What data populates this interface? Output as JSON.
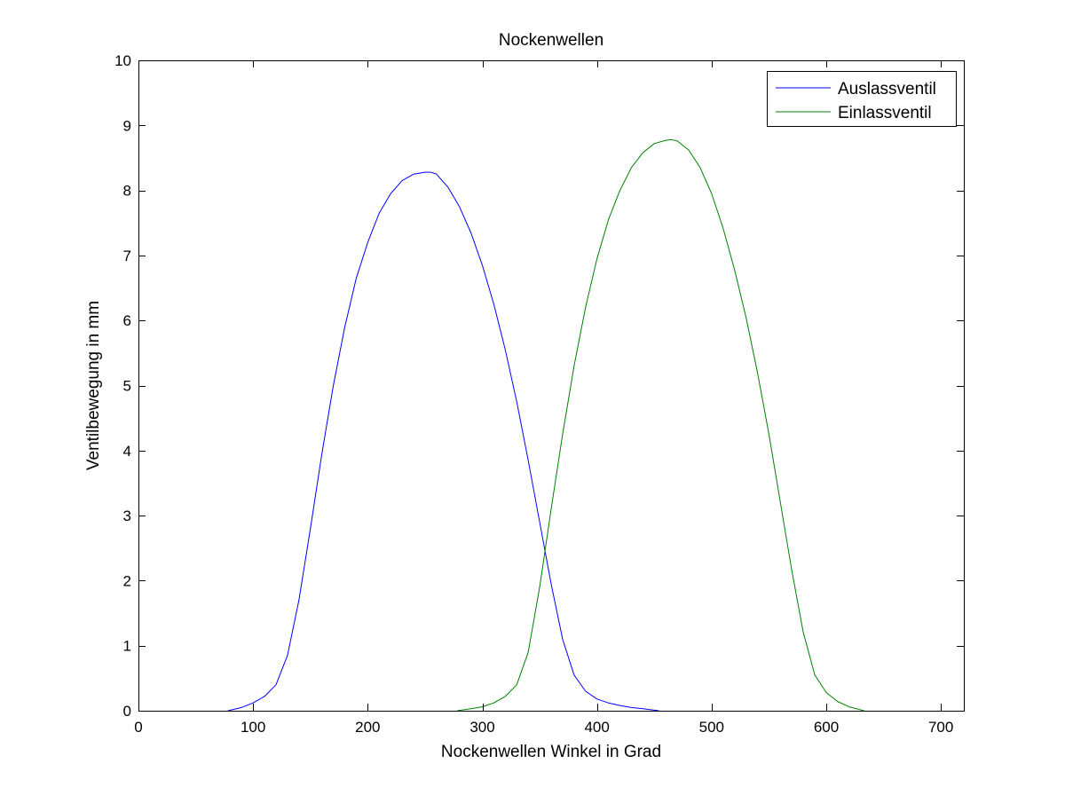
{
  "chart_data": {
    "type": "line",
    "title": "Nockenwellen",
    "xlabel": "Nockenwellen Winkel in Grad",
    "ylabel": "Ventilbewegung in mm",
    "xlim": [
      0,
      720
    ],
    "ylim": [
      0,
      10
    ],
    "xticks": [
      0,
      100,
      200,
      300,
      400,
      500,
      600,
      700
    ],
    "yticks": [
      0,
      1,
      2,
      3,
      4,
      5,
      6,
      7,
      8,
      9,
      10
    ],
    "xtick_labels": [
      "0",
      "100",
      "200",
      "300",
      "400",
      "500",
      "600",
      "700"
    ],
    "ytick_labels": [
      "0",
      "1",
      "2",
      "3",
      "4",
      "5",
      "6",
      "7",
      "8",
      "9",
      "10"
    ],
    "grid": false,
    "legend_position": "top-right",
    "series": [
      {
        "name": "Auslassventil",
        "color": "#0000ff",
        "x": [
          78,
          90,
          100,
          110,
          120,
          130,
          140,
          150,
          160,
          170,
          180,
          190,
          200,
          210,
          220,
          230,
          240,
          250,
          255,
          260,
          270,
          280,
          290,
          300,
          310,
          320,
          330,
          340,
          350,
          360,
          370,
          380,
          390,
          400,
          410,
          420,
          430,
          440,
          454
        ],
        "y": [
          0.0,
          0.05,
          0.12,
          0.22,
          0.4,
          0.85,
          1.7,
          2.8,
          3.95,
          5.0,
          5.9,
          6.65,
          7.2,
          7.65,
          7.95,
          8.15,
          8.25,
          8.28,
          8.28,
          8.25,
          8.05,
          7.75,
          7.35,
          6.85,
          6.25,
          5.55,
          4.75,
          3.85,
          2.9,
          1.95,
          1.1,
          0.55,
          0.3,
          0.18,
          0.12,
          0.08,
          0.05,
          0.03,
          0.0
        ]
      },
      {
        "name": "Einlassventil",
        "color": "#008000",
        "x": [
          278,
          290,
          300,
          310,
          320,
          330,
          340,
          350,
          360,
          370,
          380,
          390,
          400,
          410,
          420,
          430,
          440,
          450,
          460,
          465,
          470,
          480,
          490,
          500,
          510,
          520,
          530,
          540,
          550,
          560,
          570,
          580,
          590,
          600,
          610,
          620,
          633
        ],
        "y": [
          0.0,
          0.03,
          0.06,
          0.12,
          0.22,
          0.4,
          0.9,
          1.9,
          3.1,
          4.25,
          5.3,
          6.2,
          6.95,
          7.55,
          8.0,
          8.35,
          8.58,
          8.72,
          8.77,
          8.78,
          8.76,
          8.62,
          8.35,
          7.95,
          7.42,
          6.78,
          6.05,
          5.2,
          4.25,
          3.2,
          2.15,
          1.2,
          0.55,
          0.28,
          0.14,
          0.06,
          0.0
        ]
      }
    ]
  }
}
